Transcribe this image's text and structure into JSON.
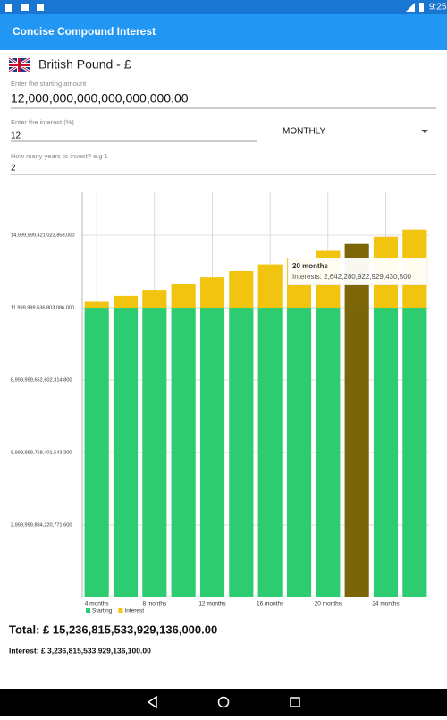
{
  "status_bar": {
    "time": "9:25"
  },
  "app_bar": {
    "title": "Concise Compound Interest"
  },
  "currency": {
    "label": "British Pound - £"
  },
  "form": {
    "amount": {
      "hint": "Enter the starting amount",
      "value": "12,000,000,000,000,000,000.00"
    },
    "interest": {
      "hint": "Enter the interest (%)",
      "value": "12"
    },
    "frequency": "MONTHLY",
    "years": {
      "hint": "How many years to invest? e.g 1",
      "value": "2"
    }
  },
  "chart_data": {
    "type": "bar",
    "stacked": true,
    "categories": [
      "4 months",
      null,
      "8 months",
      null,
      "12 months",
      null,
      "16 months",
      null,
      "20 months",
      null,
      "24 months",
      null
    ],
    "series": [
      {
        "name": "Starting",
        "color": "#2ecc71",
        "highlight_color": "#7a6609",
        "values": [
          12000000000000000000,
          12000000000000000000,
          12000000000000000000,
          12000000000000000000,
          12000000000000000000,
          12000000000000000000,
          12000000000000000000,
          12000000000000000000,
          12000000000000000000,
          12000000000000000000,
          12000000000000000000,
          12000000000000000000
        ]
      },
      {
        "name": "Interest",
        "color": "#f1c40f",
        "highlight_color": "#7d6608",
        "values": [
          241200000000000000,
          487250000000000000,
          738240000000000000,
          994280000000000000,
          1255470000000000000,
          1521900000000000000,
          1793690000000000000,
          2070940000000000000,
          2353770000000000000,
          2642280922929430500,
          2936590000000000000,
          3236815533929136100
        ]
      }
    ],
    "selected_index": 9,
    "tooltip": {
      "title": "20 months",
      "text": "Interests: 2,642,280,922,929,430,500"
    },
    "ylim": [
      0,
      16780000000000000000
    ],
    "yticks": [
      {
        "value": 2999999884220771600,
        "label": "2,999,999,884,220,771,600"
      },
      {
        "value": 5999999768401543200,
        "label": "5,999,999,768,401,543,200"
      },
      {
        "value": 8999999652602314800,
        "label": "8,999,999,652,602,314,800"
      },
      {
        "value": 11999999536803086000,
        "label": "11,999,999,536,803,086,000"
      },
      {
        "value": 14999999421023858000,
        "label": "14,999,999,421,023,858,000"
      }
    ],
    "grid": true
  },
  "summary": {
    "total": "Total: £ 15,236,815,533,929,136,000.00",
    "interest": "Interest: £ 3,236,815,533,929,136,100.00"
  }
}
